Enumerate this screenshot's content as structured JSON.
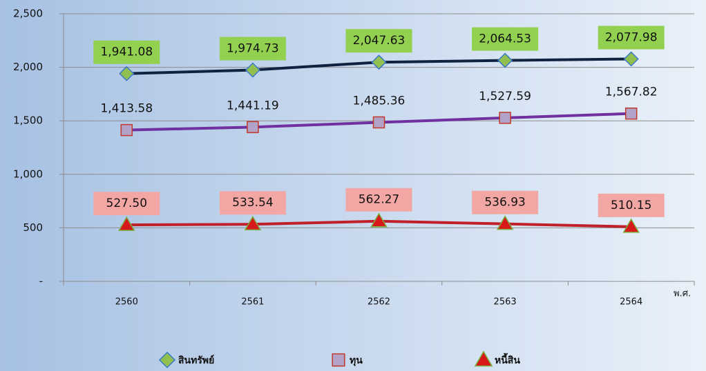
{
  "chart_data": {
    "type": "line",
    "categories": [
      "2560",
      "2561",
      "2562",
      "2563",
      "2564"
    ],
    "x_label": "พ.ศ.",
    "ylim": [
      0,
      2500
    ],
    "yticks": [
      {
        "value": 0,
        "label": "-"
      },
      500,
      {
        "value": 1000,
        "label": "1,000"
      },
      {
        "value": 1500,
        "label": "1,500"
      },
      {
        "value": 2000,
        "label": "2,000"
      },
      {
        "value": 2500,
        "label": "2,500"
      }
    ],
    "grid": true,
    "legend": "bottom",
    "series": [
      {
        "name": "สินทรัพย์",
        "color": "#0f2340",
        "marker": "diamond",
        "marker_color": "#92c050",
        "marker_edge": "#3a78c8",
        "label_bg": "#92d050",
        "values": [
          1941.08,
          1974.73,
          2047.63,
          2064.53,
          2077.98
        ],
        "value_labels": [
          "1,941.08",
          "1,974.73",
          "2,047.63",
          "2,064.53",
          "2,077.98"
        ]
      },
      {
        "name": "ทุน",
        "color": "#7030a0",
        "marker": "square",
        "marker_color": "#b3a2c7",
        "marker_edge": "#c0392b",
        "values": [
          1413.58,
          1441.19,
          1485.36,
          1527.59,
          1567.82
        ],
        "value_labels": [
          "1,413.58",
          "1,441.19",
          "1,485.36",
          "1,527.59",
          "1,567.82"
        ]
      },
      {
        "name": "หนี้สิน",
        "color": "#c0202a",
        "marker": "triangle",
        "marker_color": "#d7191c",
        "marker_edge": "#7ab040",
        "label_bg": "#f2a7a5",
        "values": [
          527.5,
          533.54,
          562.27,
          536.93,
          510.15
        ],
        "value_labels": [
          "527.50",
          "533.54",
          "562.27",
          "536.93",
          "510.15"
        ]
      }
    ]
  }
}
